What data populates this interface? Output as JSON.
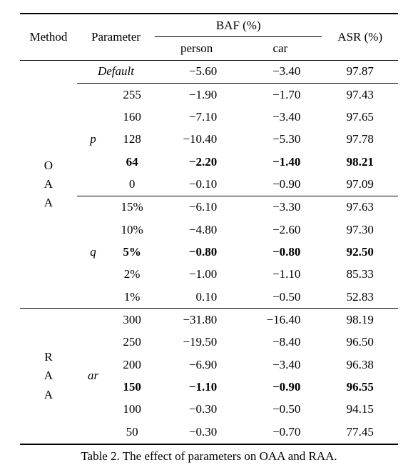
{
  "table": {
    "header": {
      "method": "Method",
      "parameter": "Parameter",
      "baf": "BAF (%)",
      "person": "person",
      "car": "car",
      "asr": "ASR (%)"
    },
    "oaa": {
      "method_stack": [
        "O",
        "A",
        "A"
      ],
      "default_label": "Default",
      "default": {
        "person": "−5.60",
        "car": "−3.40",
        "asr": "97.87"
      },
      "p": {
        "label": "p",
        "rows": [
          {
            "v": "255",
            "person": "−1.90",
            "car": "−1.70",
            "asr": "97.43",
            "bold": false
          },
          {
            "v": "160",
            "person": "−7.10",
            "car": "−3.40",
            "asr": "97.65",
            "bold": false
          },
          {
            "v": "128",
            "person": "−10.40",
            "car": "−5.30",
            "asr": "97.78",
            "bold": false
          },
          {
            "v": "64",
            "person": "−2.20",
            "car": "−1.40",
            "asr": "98.21",
            "bold": true
          },
          {
            "v": "0",
            "person": "−0.10",
            "car": "−0.90",
            "asr": "97.09",
            "bold": false
          }
        ]
      },
      "q": {
        "label": "q",
        "rows": [
          {
            "v": "15%",
            "person": "−6.10",
            "car": "−3.30",
            "asr": "97.63",
            "bold": false
          },
          {
            "v": "10%",
            "person": "−4.80",
            "car": "−2.60",
            "asr": "97.30",
            "bold": false
          },
          {
            "v": "5%",
            "person": "−0.80",
            "car": "−0.80",
            "asr": "92.50",
            "bold": true
          },
          {
            "v": "2%",
            "person": "−1.00",
            "car": "−1.10",
            "asr": "85.33",
            "bold": false
          },
          {
            "v": "1%",
            "person": "0.10",
            "car": "−0.50",
            "asr": "52.83",
            "bold": false
          }
        ]
      }
    },
    "raa": {
      "method_stack": [
        "R",
        "A",
        "A"
      ],
      "ar": {
        "label": "ar",
        "rows": [
          {
            "v": "300",
            "person": "−31.80",
            "car": "−16.40",
            "asr": "98.19",
            "bold": false
          },
          {
            "v": "250",
            "person": "−19.50",
            "car": "−8.40",
            "asr": "96.50",
            "bold": false
          },
          {
            "v": "200",
            "person": "−6.90",
            "car": "−3.40",
            "asr": "96.38",
            "bold": false
          },
          {
            "v": "150",
            "person": "−1.10",
            "car": "−0.90",
            "asr": "96.55",
            "bold": true
          },
          {
            "v": "100",
            "person": "−0.30",
            "car": "−0.50",
            "asr": "94.15",
            "bold": false
          },
          {
            "v": "50",
            "person": "−0.30",
            "car": "−0.70",
            "asr": "77.45",
            "bold": false
          }
        ]
      }
    }
  },
  "caption": "Table 2. The effect of parameters on OAA and RAA."
}
